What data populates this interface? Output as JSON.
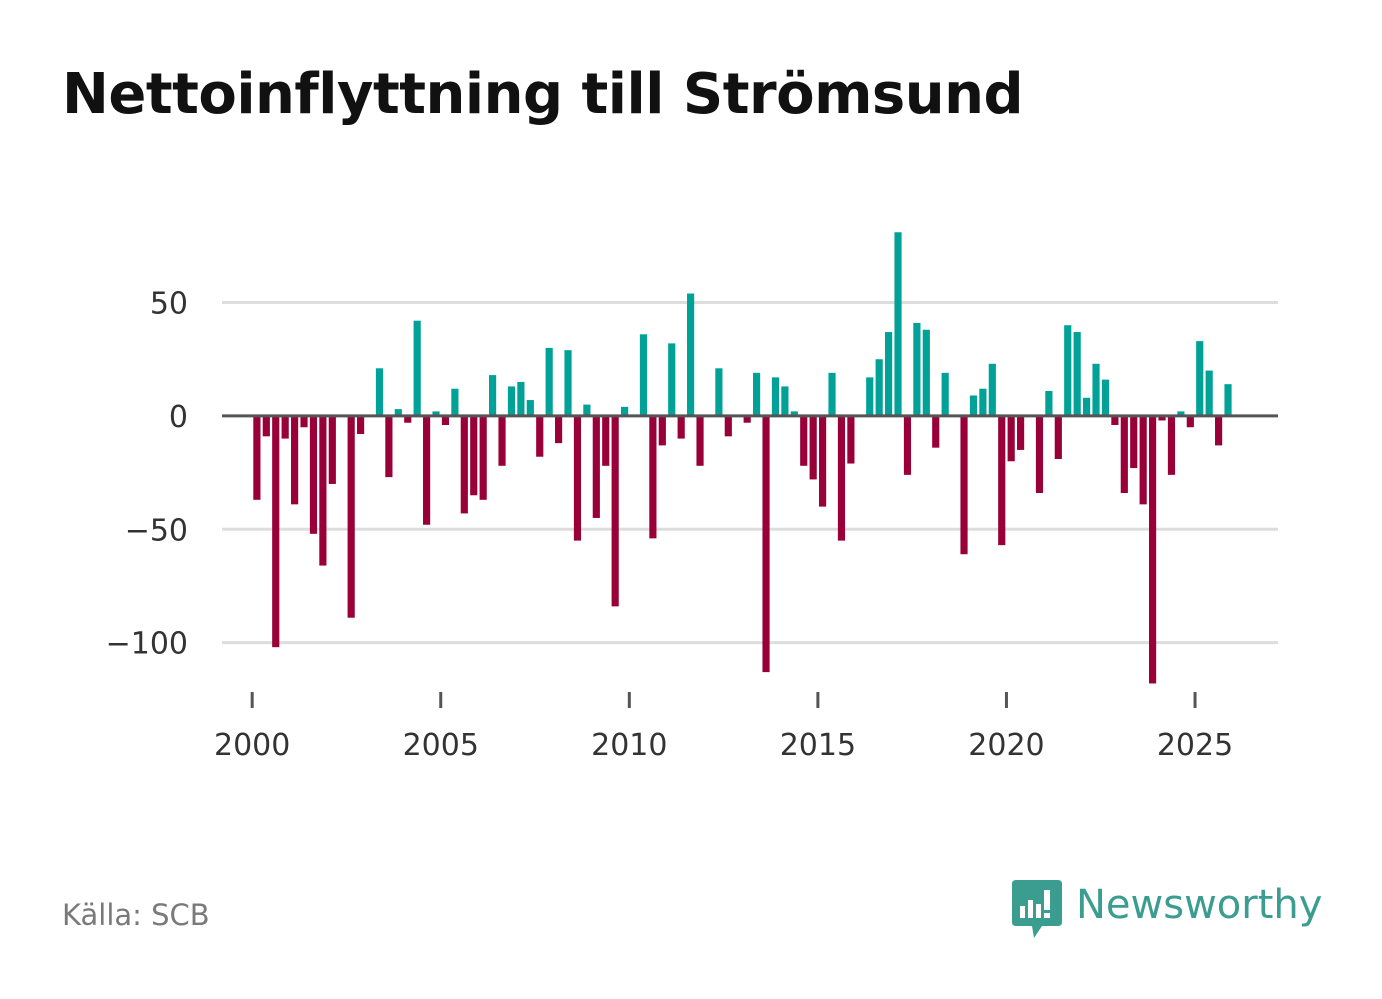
{
  "title": "Nettoinflyttning till Strömsund",
  "source": "Källa: SCB",
  "brand": {
    "name": "Newsworthy",
    "icon": "newsworthy-logo-icon",
    "color": "#3a9d8f"
  },
  "colors": {
    "positive": "#00a197",
    "negative": "#9a0038",
    "grid": "#dddddd",
    "zero_line": "#555555"
  },
  "chart_data": {
    "type": "bar",
    "title": "Nettoinflyttning till Strömsund",
    "xlabel": "",
    "ylabel": "",
    "ylim": [
      -120,
      82
    ],
    "xlim": [
      1999.2,
      2027.2
    ],
    "yticks": [
      50,
      0,
      -50,
      -100
    ],
    "ytick_labels": [
      "50",
      "0",
      "−50",
      "−100"
    ],
    "xticks": [
      2000,
      2005,
      2010,
      2015,
      2020,
      2025
    ],
    "xtick_labels": [
      "2000",
      "2005",
      "2010",
      "2015",
      "2020",
      "2025"
    ],
    "bar_width_years": 0.19,
    "series": [
      {
        "name": "Nettoinflyttning",
        "start": 2000.125,
        "step": 0.25,
        "values": [
          -37,
          -9,
          -102,
          -10,
          -39,
          -5,
          -52,
          -66,
          -30,
          0,
          -89,
          -8,
          0,
          21,
          -27,
          3,
          -3,
          42,
          -48,
          2,
          -4,
          12,
          -43,
          -35,
          -37,
          18,
          -22,
          13,
          15,
          7,
          -18,
          30,
          -12,
          29,
          -55,
          5,
          -45,
          -22,
          -84,
          4,
          0,
          36,
          -54,
          -13,
          32,
          -10,
          54,
          -22,
          0,
          21,
          -9,
          0,
          -3,
          19,
          -113,
          17,
          13,
          2,
          -22,
          -28,
          -40,
          19,
          -55,
          -21,
          0,
          17,
          25,
          37,
          81,
          -26,
          41,
          38,
          -14,
          19,
          0,
          -61,
          9,
          12,
          23,
          -57,
          -20,
          -15,
          0,
          -34,
          11,
          -19,
          40,
          37,
          8,
          23,
          16,
          -4,
          -34,
          -23,
          -39,
          -118,
          -2,
          -26,
          2,
          -5,
          33,
          20,
          -13,
          14
        ]
      }
    ]
  }
}
